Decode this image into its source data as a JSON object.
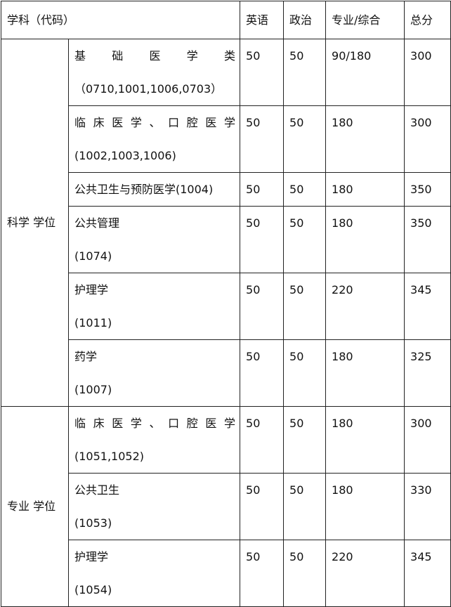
{
  "header": {
    "subject": "学科（代码）",
    "english": "英语",
    "politics": "政治",
    "major": "专业/综合",
    "total": "总分"
  },
  "groups": [
    {
      "label": "科学 学位",
      "rows": [
        {
          "name": "基 础 医 学 类",
          "code": "（0710,1001,1006,0703）",
          "english": "50",
          "politics": "50",
          "major": "90/180",
          "total": "300"
        },
        {
          "name": "临床医学、口腔医学",
          "code": "(1002,1003,1006)",
          "english": "50",
          "politics": "50",
          "major": "180",
          "total": "300"
        },
        {
          "name": "公共卫生与预防医学(1004)",
          "english": "50",
          "politics": "50",
          "major": "180",
          "total": "350"
        },
        {
          "name": "公共管理",
          "code": "(1074)",
          "english": "50",
          "politics": "50",
          "major": "180",
          "total": "350"
        },
        {
          "name": "护理学",
          "code": "(1011)",
          "english": "50",
          "politics": "50",
          "major": "220",
          "total": "345"
        },
        {
          "name": "药学",
          "code": "(1007)",
          "english": "50",
          "politics": "50",
          "major": "180",
          "total": "325"
        }
      ]
    },
    {
      "label": "专业 学位",
      "rows": [
        {
          "name": "临床医学、口腔医学",
          "code": "(1051,1052)",
          "english": "50",
          "politics": "50",
          "major": "180",
          "total": "300"
        },
        {
          "name": "公共卫生",
          "code": "(1053)",
          "english": "50",
          "politics": "50",
          "major": "180",
          "total": "330"
        },
        {
          "name": "护理学",
          "code": "(1054)",
          "english": "50",
          "politics": "50",
          "major": "220",
          "total": "345"
        }
      ]
    }
  ]
}
